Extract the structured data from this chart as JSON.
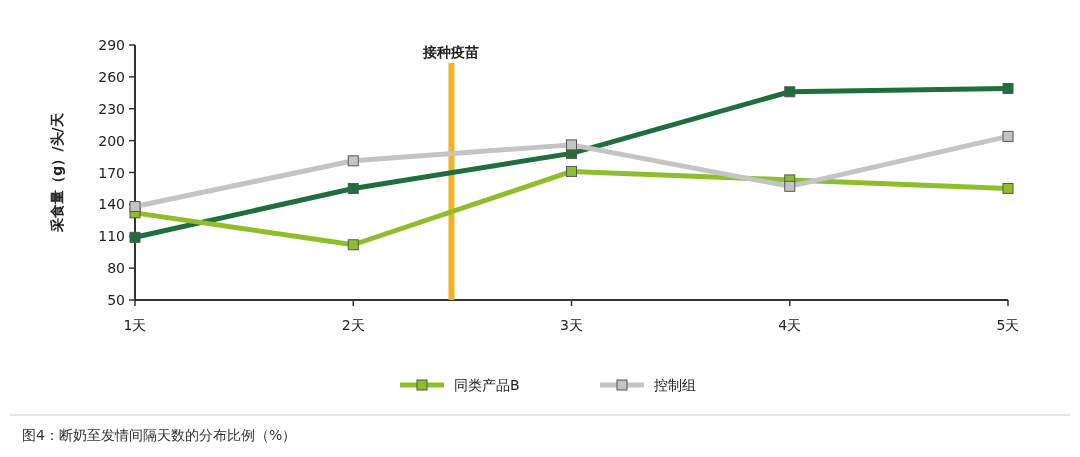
{
  "chart_data": {
    "type": "line",
    "ylabel": "采食量（g）/头/天",
    "x": [
      1,
      2,
      3,
      4,
      5
    ],
    "xlim": [
      1,
      5
    ],
    "xticks": [
      {
        "value": 1,
        "label": "1天"
      },
      {
        "value": 2,
        "label": "2天"
      },
      {
        "value": 3,
        "label": "3天"
      },
      {
        "value": 4,
        "label": "4天"
      },
      {
        "value": 5,
        "label": "5天"
      }
    ],
    "ylim": [
      50,
      290
    ],
    "yticks": [
      50,
      80,
      110,
      140,
      170,
      200,
      230,
      260,
      290
    ],
    "series": [
      {
        "color": "#1f6e3d",
        "values": [
          109,
          155,
          188,
          246,
          249
        ]
      },
      {
        "name": "同类产品B",
        "color": "#8fbe2c",
        "values": [
          132,
          102,
          171,
          163,
          155
        ]
      },
      {
        "name": "控制组",
        "color": "#c4c4c4",
        "values": [
          138,
          181,
          196,
          157,
          204
        ]
      }
    ],
    "ref_lines": [
      {
        "axis": "x",
        "value": 2.45,
        "label": "接种疫苗",
        "color": "#f0b323"
      }
    ],
    "marker": "square",
    "grid": false,
    "legend": "bottom",
    "annotations": [
      "图4：断奶至发情间隔天数的分布比例（%）"
    ]
  }
}
